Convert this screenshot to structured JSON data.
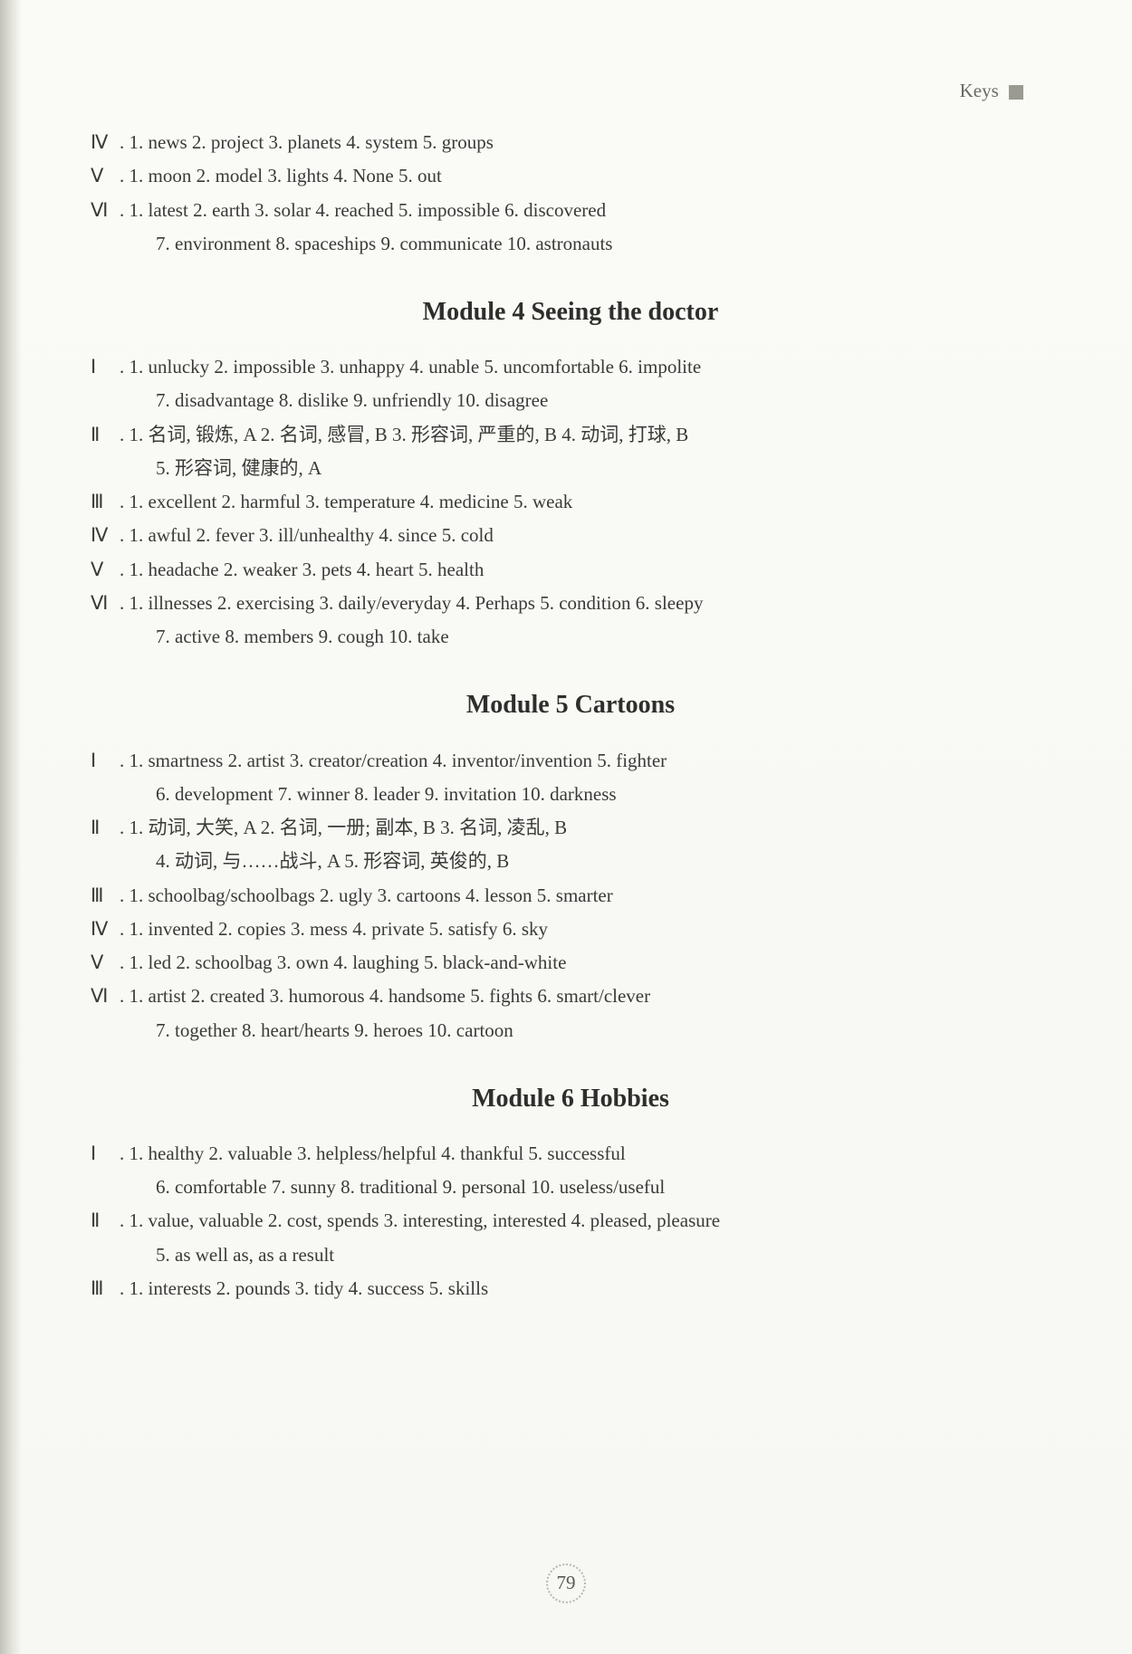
{
  "header": {
    "label": "Keys"
  },
  "top": {
    "s4": {
      "roman": "Ⅳ",
      "text": ". 1. news   2. project   3. planets   4. system   5. groups"
    },
    "s5": {
      "roman": "Ⅴ",
      "text": ". 1. moon   2. model   3. lights   4. None   5. out"
    },
    "s6a": {
      "roman": "Ⅵ",
      "text": ". 1. latest   2. earth   3. solar   4. reached   5. impossible   6. discovered"
    },
    "s6b": "7. environment   8. spaceships   9. communicate   10. astronauts"
  },
  "m4": {
    "title": "Module 4    Seeing the doctor",
    "l1a": {
      "roman": "Ⅰ",
      "text": ". 1. unlucky   2. impossible   3. unhappy   4. unable   5. uncomfortable   6. impolite"
    },
    "l1b": "7. disadvantage   8. dislike   9. unfriendly   10. disagree",
    "l2a": {
      "roman": "Ⅱ",
      "text": ". 1. 名词, 锻炼, A   2. 名词, 感冒, B   3. 形容词, 严重的, B   4. 动词, 打球, B"
    },
    "l2b": "5. 形容词, 健康的, A",
    "l3": {
      "roman": "Ⅲ",
      "text": ". 1. excellent   2. harmful   3. temperature   4. medicine   5. weak"
    },
    "l4": {
      "roman": "Ⅳ",
      "text": ". 1. awful   2. fever   3. ill/unhealthy   4. since   5. cold"
    },
    "l5": {
      "roman": "Ⅴ",
      "text": ". 1. headache   2. weaker   3. pets   4. heart   5. health"
    },
    "l6a": {
      "roman": "Ⅵ",
      "text": ". 1. illnesses   2. exercising   3. daily/everyday   4. Perhaps   5. condition   6. sleepy"
    },
    "l6b": "7. active   8. members   9. cough   10. take"
  },
  "m5": {
    "title": "Module 5    Cartoons",
    "l1a": {
      "roman": "Ⅰ",
      "text": ". 1. smartness   2. artist   3. creator/creation   4. inventor/invention   5. fighter"
    },
    "l1b": "6. development   7. winner   8. leader   9. invitation   10. darkness",
    "l2a": {
      "roman": "Ⅱ",
      "text": ". 1. 动词, 大笑, A   2. 名词, 一册; 副本, B   3. 名词, 凌乱, B"
    },
    "l2b": "4. 动词, 与……战斗, A   5. 形容词, 英俊的, B",
    "l3": {
      "roman": "Ⅲ",
      "text": ". 1. schoolbag/schoolbags   2. ugly   3. cartoons   4. lesson   5. smarter"
    },
    "l4": {
      "roman": "Ⅳ",
      "text": ". 1. invented   2. copies   3. mess   4. private   5. satisfy   6. sky"
    },
    "l5": {
      "roman": "Ⅴ",
      "text": ". 1. led   2. schoolbag   3. own   4. laughing   5. black-and-white"
    },
    "l6a": {
      "roman": "Ⅵ",
      "text": ". 1. artist   2. created   3. humorous   4. handsome   5. fights   6. smart/clever"
    },
    "l6b": "7. together   8. heart/hearts   9. heroes   10. cartoon"
  },
  "m6": {
    "title": "Module 6    Hobbies",
    "l1a": {
      "roman": "Ⅰ",
      "text": ". 1. healthy   2. valuable   3. helpless/helpful   4. thankful   5. successful"
    },
    "l1b": "6. comfortable   7. sunny   8. traditional   9. personal   10. useless/useful",
    "l2a": {
      "roman": "Ⅱ",
      "text": ". 1. value, valuable   2. cost, spends   3. interesting, interested   4. pleased, pleasure"
    },
    "l2b": "5. as well as, as a result",
    "l3": {
      "roman": "Ⅲ",
      "text": ". 1. interests   2. pounds   3. tidy   4. success   5. skills"
    }
  },
  "pageNumber": "79"
}
